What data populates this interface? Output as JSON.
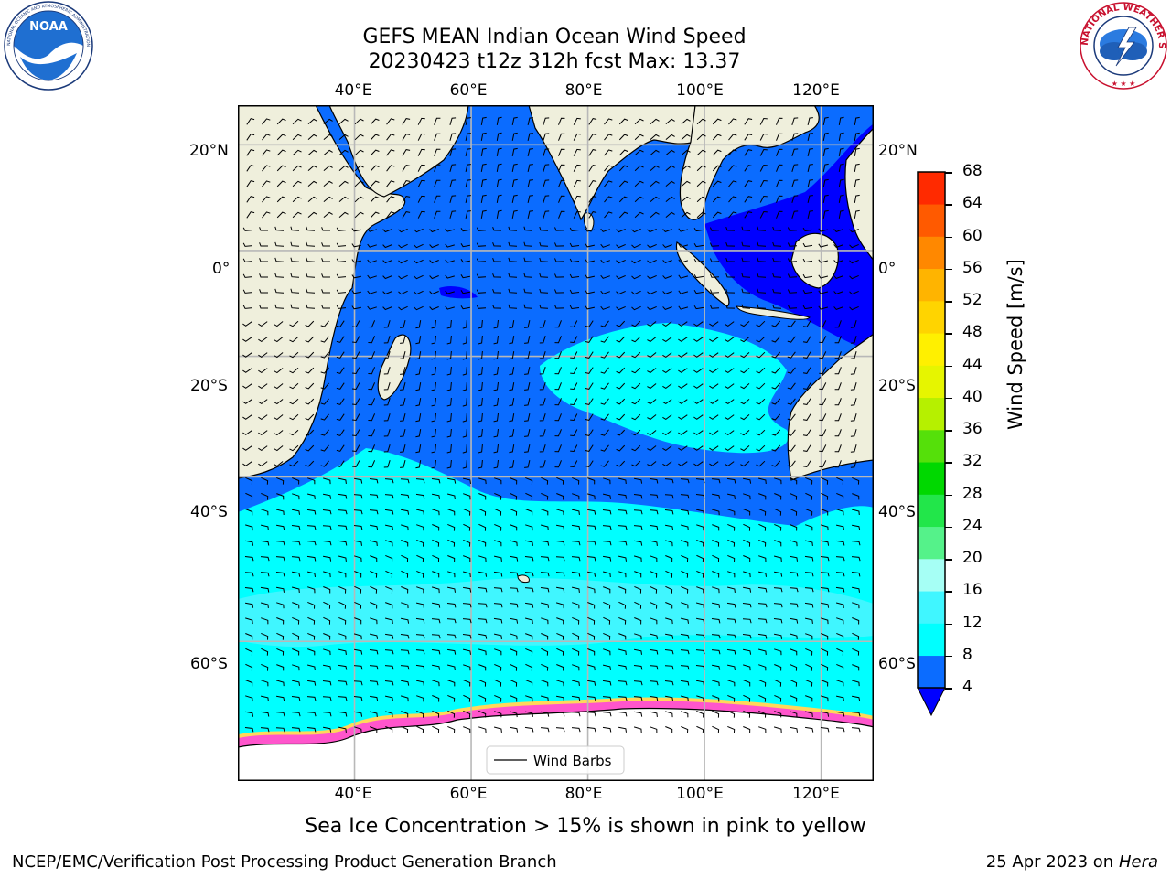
{
  "title": {
    "line1": "GEFS MEAN Indian Ocean Wind Speed",
    "line2": "20230423 t12z 312h fcst   Max: 13.37"
  },
  "logos": {
    "left": {
      "text": "NOAA",
      "ring_text": "NATIONAL OCEANIC AND ATMOSPHERIC ADMINISTRATION · U.S. DEPARTMENT OF COMMERCE",
      "icon": "noaa-seal-icon"
    },
    "right": {
      "ring_text": "NATIONAL WEATHER SERVICE",
      "icon": "nws-seal-icon"
    }
  },
  "map": {
    "lon_ticks": [
      "40°E",
      "60°E",
      "80°E",
      "100°E",
      "120°E"
    ],
    "lon_values": [
      40,
      60,
      80,
      100,
      120
    ],
    "lat_ticks": [
      "20°N",
      "0°",
      "20°S",
      "40°S",
      "60°S"
    ],
    "lat_values": [
      20,
      0,
      -20,
      -40,
      -60
    ],
    "extent": {
      "lon": [
        20,
        129
      ],
      "lat": [
        -71,
        27
      ]
    },
    "legend_label": "Wind Barbs",
    "colors": {
      "land": "#efefdc",
      "ice": "#ff55cc",
      "ice_edge": "#ffd85a"
    }
  },
  "colorbar": {
    "label": "Wind Speed [m/s]",
    "ticks": [
      "68",
      "64",
      "60",
      "56",
      "52",
      "48",
      "44",
      "40",
      "36",
      "32",
      "28",
      "24",
      "20",
      "16",
      "12",
      "8",
      "4"
    ],
    "levels": [
      4,
      8,
      12,
      16,
      20,
      24,
      28,
      32,
      36,
      40,
      44,
      48,
      52,
      56,
      60,
      64,
      68
    ],
    "colors": [
      "#0b6cff",
      "#00ffff",
      "#40f6ff",
      "#a6fff5",
      "#55f28a",
      "#22e64a",
      "#00d800",
      "#55e00a",
      "#b6f000",
      "#e6f500",
      "#fff000",
      "#ffd400",
      "#ffb400",
      "#ff8800",
      "#ff5a00",
      "#ff2a00"
    ],
    "under_color": "#0000ff"
  },
  "footer": {
    "note": "Sea Ice Concentration > 15% is shown in pink to yellow",
    "left": "NCEP/EMC/Verification Post Processing Product Generation Branch",
    "date": "25 Apr 2023 on ",
    "machine": "Hera"
  }
}
